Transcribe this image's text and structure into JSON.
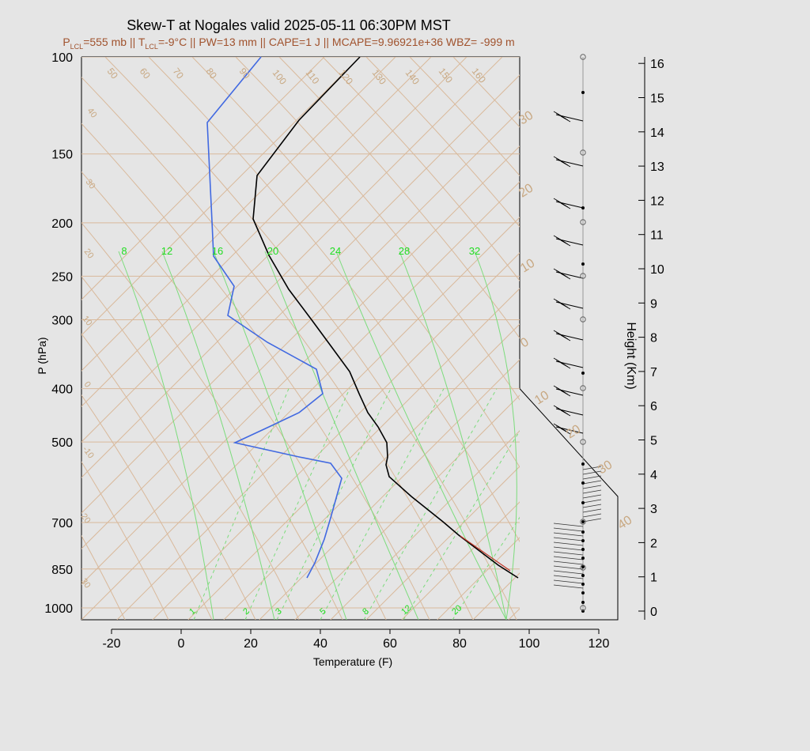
{
  "title": "Skew-T at Nogales valid 2025-05-11 06:30PM MST",
  "subtitle": {
    "plcl_label": "P",
    "plcl_sub": "LCL",
    "plcl_val": "=555 mb || ",
    "tlcl_label": "T",
    "tlcl_sub": "LCL",
    "tlcl_val": "=-9°C || PW=13 mm || CAPE=1 J || MCAPE=9.96921e+36 WBZ= -999 m"
  },
  "chart_data": {
    "type": "line",
    "xlabel": "Temperature (F)",
    "ylabel": "P (hPa)",
    "y2label": "Height (Km)",
    "xlim": [
      -28,
      125
    ],
    "ylim": [
      1030,
      100
    ],
    "x_ticks": [
      -20,
      0,
      20,
      40,
      60,
      80,
      100,
      120
    ],
    "y_ticks": [
      100,
      150,
      200,
      250,
      300,
      400,
      500,
      700,
      850,
      1000
    ],
    "height_ticks": [
      0,
      1,
      2,
      3,
      4,
      5,
      6,
      7,
      8,
      9,
      10,
      11,
      12,
      13,
      14,
      15,
      16
    ],
    "isotherm_labels": [
      "50",
      "60",
      "70",
      "80",
      "90",
      "100",
      "110",
      "120",
      "130",
      "140",
      "150",
      "160"
    ],
    "dry_adiabat_labels": [
      "40",
      "30",
      "20",
      "10",
      "0",
      "-10",
      "20",
      "30"
    ],
    "mixing_ratio_top_labels": [
      "8",
      "12",
      "16",
      "20",
      "24",
      "28",
      "32"
    ],
    "mixing_ratio_bottom_labels": [
      "1",
      "2",
      "3",
      "5",
      "8",
      "12",
      "20"
    ],
    "right_side_labels": [
      "30",
      "20",
      "10",
      "0",
      "10",
      "20",
      "30",
      "40"
    ],
    "series": [
      {
        "name": "",
        "color": "#000000",
        "points": [
          [
            840,
            97
          ],
          [
            900,
            80
          ],
          [
            1000,
            70
          ],
          [
            1100,
            63
          ],
          [
            1200,
            58
          ],
          [
            1300,
            55
          ],
          [
            1400,
            51
          ],
          [
            1500,
            49
          ],
          [
            1600,
            46
          ],
          [
            1700,
            40
          ],
          [
            1800,
            33
          ],
          [
            1900,
            25
          ],
          [
            2000,
            18
          ],
          [
            2100,
            10
          ],
          [
            2200,
            3
          ],
          [
            2300,
            -3
          ],
          [
            2400,
            -10
          ],
          [
            2500,
            -18
          ],
          [
            2600,
            -26
          ],
          [
            2700,
            -33
          ],
          [
            2800,
            -40
          ],
          [
            2900,
            -47
          ],
          [
            3000,
            -53
          ]
        ]
      },
      {
        "name": "",
        "color": "#4169e1",
        "points": [
          [
            840,
            36
          ],
          [
            900,
            30
          ],
          [
            1000,
            25
          ],
          [
            1100,
            15
          ],
          [
            1200,
            5
          ],
          [
            1300,
            -5
          ],
          [
            1400,
            -15
          ],
          [
            1500,
            -25
          ],
          [
            1600,
            -35
          ],
          [
            1700,
            -45
          ],
          [
            1800,
            -50
          ],
          [
            1900,
            -55
          ],
          [
            2000,
            -60
          ]
        ]
      }
    ]
  }
}
